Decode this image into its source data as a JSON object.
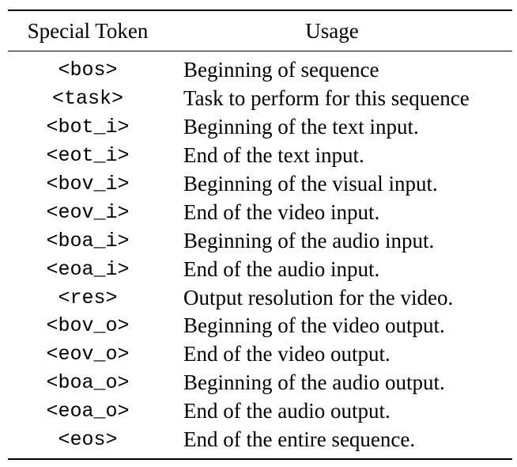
{
  "table": {
    "headers": {
      "token": "Special Token",
      "usage": "Usage"
    },
    "rows": [
      {
        "token": "<bos>",
        "usage": "Beginning of sequence"
      },
      {
        "token": "<task>",
        "usage": "Task to perform for this sequence"
      },
      {
        "token": "<bot_i>",
        "usage": "Beginning of the text input."
      },
      {
        "token": "<eot_i>",
        "usage": "End of the text input."
      },
      {
        "token": "<bov_i>",
        "usage": "Beginning of the visual input."
      },
      {
        "token": "<eov_i>",
        "usage": "End of the video input."
      },
      {
        "token": "<boa_i>",
        "usage": "Beginning of the audio input."
      },
      {
        "token": "<eoa_i>",
        "usage": "End of the audio input."
      },
      {
        "token": "<res>",
        "usage": "Output resolution for the video."
      },
      {
        "token": "<bov_o>",
        "usage": "Beginning of the video output."
      },
      {
        "token": "<eov_o>",
        "usage": "End of the video output."
      },
      {
        "token": "<boa_o>",
        "usage": "Beginning of the audio output."
      },
      {
        "token": "<eoa_o>",
        "usage": "End of the audio output."
      },
      {
        "token": "<eos>",
        "usage": "End of the entire sequence."
      }
    ]
  }
}
